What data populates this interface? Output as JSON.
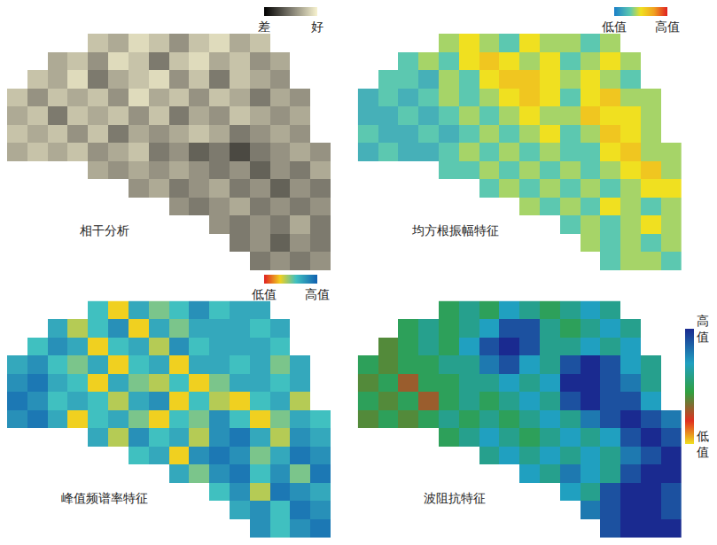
{
  "chart_data": [
    {
      "type": "heatmap",
      "title": "相干分析",
      "tick_labels": false,
      "z": [
        [
          null,
          null,
          null,
          null,
          0.8,
          0.7,
          0.9,
          0.8,
          0.6,
          0.8,
          0.9,
          0.7,
          0.8,
          null,
          null,
          null
        ],
        [
          null,
          null,
          0.7,
          0.8,
          0.6,
          0.9,
          0.8,
          0.5,
          0.8,
          0.9,
          0.7,
          0.8,
          0.6,
          0.7,
          null,
          null
        ],
        [
          null,
          0.8,
          0.7,
          0.9,
          0.5,
          0.7,
          0.8,
          0.9,
          0.6,
          0.8,
          0.5,
          0.8,
          0.7,
          0.6,
          null,
          null
        ],
        [
          0.8,
          0.6,
          0.8,
          0.7,
          0.8,
          0.6,
          0.9,
          0.7,
          0.8,
          0.6,
          0.8,
          0.7,
          0.5,
          0.7,
          0.6,
          null
        ],
        [
          0.7,
          0.8,
          0.5,
          0.8,
          0.7,
          0.8,
          0.6,
          0.8,
          0.5,
          0.7,
          0.6,
          0.8,
          0.7,
          0.6,
          0.7,
          null
        ],
        [
          0.8,
          0.7,
          0.8,
          0.6,
          0.8,
          0.5,
          0.7,
          0.6,
          0.7,
          0.8,
          0.7,
          0.5,
          0.6,
          0.7,
          0.6,
          null
        ],
        [
          0.7,
          0.8,
          0.7,
          0.8,
          0.6,
          0.7,
          0.8,
          0.5,
          0.6,
          0.4,
          0.5,
          0.3,
          0.5,
          0.6,
          0.7,
          0.6
        ],
        [
          null,
          null,
          null,
          null,
          0.7,
          0.6,
          0.7,
          0.6,
          0.7,
          0.6,
          0.5,
          0.6,
          0.4,
          0.6,
          0.5,
          0.7
        ],
        [
          null,
          null,
          null,
          null,
          null,
          null,
          0.6,
          0.7,
          0.5,
          0.6,
          0.7,
          0.5,
          0.6,
          0.4,
          0.6,
          0.5
        ],
        [
          null,
          null,
          null,
          null,
          null,
          null,
          null,
          null,
          0.6,
          0.5,
          0.6,
          0.7,
          0.5,
          0.6,
          0.5,
          0.6
        ],
        [
          null,
          null,
          null,
          null,
          null,
          null,
          null,
          null,
          null,
          null,
          0.6,
          0.5,
          0.6,
          0.5,
          0.7,
          0.5
        ],
        [
          null,
          null,
          null,
          null,
          null,
          null,
          null,
          null,
          null,
          null,
          null,
          0.5,
          0.6,
          0.4,
          0.6,
          0.5
        ],
        [
          null,
          null,
          null,
          null,
          null,
          null,
          null,
          null,
          null,
          null,
          null,
          null,
          0.5,
          0.6,
          0.5,
          0.6
        ]
      ],
      "colorbar": {
        "range": [
          0,
          1
        ],
        "ticks": [
          {
            "value": 0,
            "label": "差"
          },
          {
            "value": 1,
            "label": "好"
          }
        ]
      }
    },
    {
      "type": "heatmap",
      "title": "均方根振幅特征",
      "tick_labels": false,
      "z": [
        [
          null,
          null,
          null,
          null,
          0.4,
          0.5,
          0.4,
          0.3,
          0.5,
          0.4,
          0.4,
          0.3,
          0.4,
          null,
          null,
          null
        ],
        [
          null,
          null,
          0.3,
          0.4,
          0.3,
          0.5,
          0.6,
          0.5,
          0.4,
          0.5,
          0.3,
          0.4,
          0.5,
          0.4,
          null,
          null
        ],
        [
          null,
          0.3,
          0.3,
          0.2,
          0.4,
          0.3,
          0.5,
          0.6,
          0.6,
          0.5,
          0.4,
          0.5,
          0.4,
          0.3,
          null,
          null
        ],
        [
          0.2,
          0.3,
          0.2,
          0.3,
          0.4,
          0.3,
          0.4,
          0.5,
          0.6,
          0.5,
          0.3,
          0.5,
          0.6,
          0.4,
          0.4,
          null
        ],
        [
          0.2,
          0.2,
          0.3,
          0.2,
          0.3,
          0.4,
          0.3,
          0.4,
          0.5,
          0.4,
          0.4,
          0.6,
          0.5,
          0.5,
          0.4,
          null
        ],
        [
          0.3,
          0.2,
          0.2,
          0.3,
          0.2,
          0.3,
          0.4,
          0.3,
          0.4,
          0.5,
          0.3,
          0.4,
          0.6,
          0.5,
          0.4,
          null
        ],
        [
          0.2,
          0.3,
          0.2,
          0.2,
          0.3,
          0.4,
          0.3,
          0.4,
          0.3,
          0.4,
          0.3,
          0.3,
          0.5,
          0.6,
          0.4,
          0.4
        ],
        [
          null,
          null,
          null,
          null,
          0.3,
          0.3,
          0.4,
          0.3,
          0.4,
          0.3,
          0.4,
          0.3,
          0.4,
          0.5,
          0.6,
          0.4
        ],
        [
          null,
          null,
          null,
          null,
          null,
          null,
          0.3,
          0.4,
          0.3,
          0.4,
          0.3,
          0.4,
          0.3,
          0.4,
          0.5,
          0.5
        ],
        [
          null,
          null,
          null,
          null,
          null,
          null,
          null,
          null,
          0.4,
          0.3,
          0.4,
          0.3,
          0.5,
          0.4,
          0.3,
          0.4
        ],
        [
          null,
          null,
          null,
          null,
          null,
          null,
          null,
          null,
          null,
          null,
          0.3,
          0.4,
          0.3,
          0.4,
          0.5,
          0.4
        ],
        [
          null,
          null,
          null,
          null,
          null,
          null,
          null,
          null,
          null,
          null,
          null,
          0.4,
          0.3,
          0.4,
          0.3,
          0.4
        ],
        [
          null,
          null,
          null,
          null,
          null,
          null,
          null,
          null,
          null,
          null,
          null,
          null,
          0.3,
          0.4,
          0.4,
          0.3
        ]
      ],
      "colorbar": {
        "range": [
          0,
          1
        ],
        "ticks": [
          {
            "value": 0,
            "label": "低值"
          },
          {
            "value": 1,
            "label": "高值"
          }
        ]
      }
    },
    {
      "type": "heatmap",
      "title": "峰值频谱率特征",
      "tick_labels": false,
      "z": [
        [
          null,
          null,
          null,
          null,
          0.6,
          0.3,
          0.7,
          0.5,
          0.6,
          0.8,
          0.6,
          0.7,
          0.7,
          null,
          null,
          null
        ],
        [
          null,
          null,
          0.7,
          0.4,
          0.6,
          0.8,
          0.3,
          0.7,
          0.5,
          0.7,
          0.7,
          0.7,
          0.6,
          0.7,
          null,
          null
        ],
        [
          null,
          0.6,
          0.8,
          0.7,
          0.3,
          0.6,
          0.7,
          0.4,
          0.8,
          0.6,
          0.7,
          0.7,
          0.7,
          0.6,
          null,
          null
        ],
        [
          0.7,
          0.8,
          0.6,
          0.5,
          0.7,
          0.3,
          0.6,
          0.7,
          0.3,
          0.7,
          0.7,
          0.6,
          0.7,
          0.5,
          0.7,
          null
        ],
        [
          0.8,
          0.9,
          0.7,
          0.6,
          0.3,
          0.7,
          0.5,
          0.4,
          0.6,
          0.3,
          0.5,
          0.7,
          0.7,
          0.6,
          0.7,
          null
        ],
        [
          0.9,
          0.8,
          0.6,
          0.7,
          0.6,
          0.4,
          0.7,
          0.8,
          0.3,
          0.6,
          0.4,
          0.3,
          0.6,
          0.7,
          0.4,
          null
        ],
        [
          0.8,
          0.9,
          0.7,
          0.3,
          0.6,
          0.7,
          0.5,
          0.3,
          0.6,
          0.5,
          0.8,
          0.6,
          0.3,
          0.5,
          0.7,
          0.6
        ],
        [
          null,
          null,
          null,
          null,
          0.7,
          0.4,
          0.8,
          0.6,
          0.7,
          0.4,
          0.8,
          0.9,
          0.7,
          0.4,
          0.8,
          0.7
        ],
        [
          null,
          null,
          null,
          null,
          null,
          null,
          0.6,
          0.7,
          0.3,
          0.8,
          0.9,
          0.8,
          0.5,
          0.7,
          0.9,
          0.8
        ],
        [
          null,
          null,
          null,
          null,
          null,
          null,
          null,
          null,
          0.7,
          0.5,
          0.8,
          0.9,
          0.6,
          0.8,
          0.5,
          0.9
        ],
        [
          null,
          null,
          null,
          null,
          null,
          null,
          null,
          null,
          null,
          null,
          0.6,
          0.8,
          0.4,
          0.9,
          0.8,
          0.7
        ],
        [
          null,
          null,
          null,
          null,
          null,
          null,
          null,
          null,
          null,
          null,
          null,
          0.7,
          0.8,
          0.6,
          0.9,
          0.8
        ],
        [
          null,
          null,
          null,
          null,
          null,
          null,
          null,
          null,
          null,
          null,
          null,
          null,
          0.8,
          0.6,
          0.8,
          0.9
        ]
      ],
      "colorbar": {
        "range": [
          0,
          1
        ],
        "ticks": [
          {
            "value": 0,
            "label": "低值"
          },
          {
            "value": 1,
            "label": "高值"
          }
        ]
      }
    },
    {
      "type": "heatmap",
      "title": "波阻抗特征",
      "tick_labels": false,
      "z": [
        [
          null,
          null,
          null,
          null,
          0.5,
          0.6,
          0.5,
          0.7,
          0.6,
          0.5,
          0.6,
          0.7,
          0.6,
          null,
          null,
          null
        ],
        [
          null,
          null,
          0.5,
          0.6,
          0.5,
          0.6,
          0.7,
          0.9,
          0.9,
          0.6,
          0.5,
          0.6,
          0.7,
          0.6,
          null,
          null
        ],
        [
          null,
          0.4,
          0.5,
          0.6,
          0.5,
          0.7,
          0.9,
          1,
          0.9,
          0.6,
          0.6,
          0.7,
          0.6,
          0.7,
          null,
          null
        ],
        [
          0.5,
          0.4,
          0.5,
          0.5,
          0.6,
          0.6,
          0.8,
          0.9,
          0.7,
          0.6,
          0.9,
          1,
          0.9,
          0.7,
          0.6,
          null
        ],
        [
          0.4,
          0.5,
          0.3,
          0.5,
          0.5,
          0.6,
          0.6,
          0.7,
          0.6,
          0.7,
          1,
          1,
          0.9,
          0.8,
          0.6,
          null
        ],
        [
          0.5,
          0.4,
          0.5,
          0.3,
          0.5,
          0.6,
          0.5,
          0.6,
          0.7,
          0.6,
          0.9,
          1,
          0.9,
          0.9,
          0.7,
          null
        ],
        [
          0.4,
          0.5,
          0.4,
          0.5,
          0.6,
          0.5,
          0.6,
          0.5,
          0.6,
          0.7,
          0.6,
          0.8,
          0.9,
          1,
          0.9,
          0.8
        ],
        [
          null,
          null,
          null,
          null,
          0.5,
          0.6,
          0.7,
          0.6,
          0.5,
          0.6,
          0.7,
          0.6,
          0.7,
          0.9,
          1,
          0.9
        ],
        [
          null,
          null,
          null,
          null,
          null,
          null,
          0.6,
          0.7,
          0.6,
          0.7,
          0.6,
          0.7,
          0.6,
          0.8,
          0.9,
          1
        ],
        [
          null,
          null,
          null,
          null,
          null,
          null,
          null,
          null,
          0.7,
          0.6,
          0.8,
          0.7,
          0.6,
          0.9,
          1,
          1
        ],
        [
          null,
          null,
          null,
          null,
          null,
          null,
          null,
          null,
          null,
          null,
          0.7,
          0.6,
          0.9,
          1,
          1,
          0.9
        ],
        [
          null,
          null,
          null,
          null,
          null,
          null,
          null,
          null,
          null,
          null,
          null,
          0.8,
          0.9,
          1,
          1,
          0.9
        ],
        [
          null,
          null,
          null,
          null,
          null,
          null,
          null,
          null,
          null,
          null,
          null,
          null,
          0.9,
          1,
          1,
          1
        ]
      ],
      "colorbar": {
        "range": [
          0,
          1
        ],
        "ticks": [
          {
            "value": 1,
            "label": "高值"
          },
          {
            "value": 0,
            "label": "低值"
          }
        ]
      }
    }
  ]
}
